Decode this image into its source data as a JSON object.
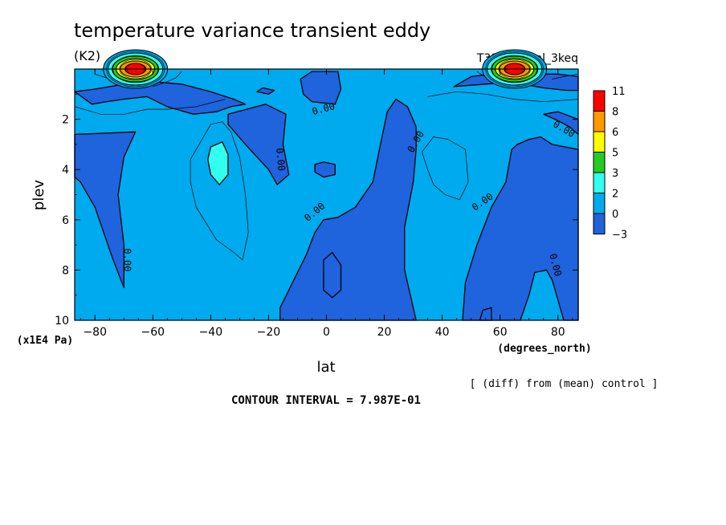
{
  "chart_data": {
    "type": "heatmap",
    "title": "temperature variance transient eddy",
    "subtitle": "(K2)",
    "run_label": "T39L24_eml_3keq",
    "xlabel": "lat",
    "x_units": "(degrees_north)",
    "ylabel": "plev",
    "y_units": "(x1E4 Pa)",
    "xlim": [
      -87,
      87
    ],
    "ylim": [
      0,
      10
    ],
    "y_reversed": true,
    "x_ticks": [
      -80,
      -60,
      -40,
      -20,
      0,
      20,
      40,
      60,
      80
    ],
    "x_tick_labels": [
      "−80",
      "−60",
      "−40",
      "−20",
      "0",
      "20",
      "40",
      "60",
      "80"
    ],
    "y_ticks": [
      2,
      4,
      6,
      8,
      10
    ],
    "y_tick_labels": [
      "2",
      "4",
      "6",
      "8",
      "10"
    ],
    "colorbar": {
      "placement": "right",
      "levels": [
        "11",
        "8",
        "6",
        "5",
        "3",
        "2",
        "0",
        "−3"
      ],
      "colors": [
        "#ff0000",
        "#ff9900",
        "#ffff00",
        "#22cc22",
        "#33ffee",
        "#00aaee",
        "#1f63dd"
      ]
    },
    "contour_labels": [
      {
        "text": "0.00",
        "lat": -1,
        "plev": 1.6,
        "rotate": -15
      },
      {
        "text": "0.00",
        "lat": -16,
        "plev": 3.6,
        "rotate": 85
      },
      {
        "text": "0.00",
        "lat": 31,
        "plev": 2.9,
        "rotate": -60
      },
      {
        "text": "0.00",
        "lat": -4,
        "plev": 5.7,
        "rotate": -40
      },
      {
        "text": "0.00",
        "lat": 54,
        "plev": 5.3,
        "rotate": -35
      },
      {
        "text": "0.00",
        "lat": 82,
        "plev": 2.4,
        "rotate": 30
      },
      {
        "text": "0.00",
        "lat": -69,
        "plev": 7.6,
        "rotate": 90
      },
      {
        "text": "0.00",
        "lat": 79,
        "plev": 7.8,
        "rotate": 75
      }
    ],
    "regions": {
      "negative_below_0": [
        [
          [
            -87,
            0.9
          ],
          [
            -81,
            1.4
          ],
          [
            -76,
            1.3
          ],
          [
            -70,
            1.2
          ],
          [
            -62,
            1.1
          ],
          [
            -55,
            1.5
          ],
          [
            -46,
            1.8
          ],
          [
            -38,
            1.7
          ],
          [
            -33,
            1.5
          ],
          [
            -28,
            1.4
          ],
          [
            -32,
            1.2
          ],
          [
            -40,
            0.9
          ],
          [
            -50,
            0.6
          ],
          [
            -60,
            0.5
          ],
          [
            -70,
            0.6
          ],
          [
            -80,
            0.8
          ]
        ],
        [
          [
            -87,
            2.6
          ],
          [
            -66,
            2.5
          ],
          [
            -70,
            3.5
          ],
          [
            -72,
            5.0
          ],
          [
            -70,
            7.0
          ],
          [
            -70,
            8.7
          ],
          [
            -74,
            7.5
          ],
          [
            -80,
            5.5
          ],
          [
            -85,
            4.5
          ],
          [
            -87,
            4.3
          ]
        ],
        [
          [
            -34,
            1.8
          ],
          [
            -21,
            1.4
          ],
          [
            -14,
            1.8
          ],
          [
            -15,
            3.0
          ],
          [
            -13,
            4.2
          ],
          [
            -17,
            4.6
          ],
          [
            -20,
            4.0
          ],
          [
            -28,
            3.0
          ],
          [
            -34,
            2.2
          ]
        ],
        [
          [
            -9,
            0.4
          ],
          [
            -5,
            0.1
          ],
          [
            4,
            0.1
          ],
          [
            5,
            0.8
          ],
          [
            3,
            1.4
          ],
          [
            -5,
            1.3
          ],
          [
            -8,
            1.0
          ]
        ],
        [
          [
            -4,
            3.8
          ],
          [
            -1,
            3.7
          ],
          [
            3,
            3.8
          ],
          [
            3,
            4.2
          ],
          [
            -1,
            4.3
          ],
          [
            -4,
            4.1
          ]
        ],
        [
          [
            -16,
            9.5
          ],
          [
            -7,
            7.4
          ],
          [
            -4,
            6.5
          ],
          [
            -1,
            6.0
          ],
          [
            4,
            5.9
          ],
          [
            10,
            5.5
          ],
          [
            16,
            4.5
          ],
          [
            19,
            2.8
          ],
          [
            21,
            1.7
          ],
          [
            24,
            1.2
          ],
          [
            28,
            1.5
          ],
          [
            31,
            2.3
          ],
          [
            31,
            3.2
          ],
          [
            30,
            4.5
          ],
          [
            27,
            6.3
          ],
          [
            27,
            8.0
          ],
          [
            29,
            9.0
          ],
          [
            31,
            10.0
          ],
          [
            -16,
            10.0
          ]
        ],
        [
          [
            -1,
            7.6
          ],
          [
            2,
            7.3
          ],
          [
            5,
            7.8
          ],
          [
            5,
            8.8
          ],
          [
            2,
            9.1
          ],
          [
            -1,
            8.8
          ]
        ],
        [
          [
            47,
            10.0
          ],
          [
            48,
            8.5
          ],
          [
            52,
            7.0
          ],
          [
            57,
            5.5
          ],
          [
            62,
            4.5
          ],
          [
            64,
            3.2
          ],
          [
            66,
            3.0
          ],
          [
            70,
            2.8
          ],
          [
            74,
            2.7
          ],
          [
            78,
            3.0
          ],
          [
            87,
            3.2
          ],
          [
            87,
            10.0
          ],
          [
            82,
            10.0
          ],
          [
            80,
            9.2
          ],
          [
            78,
            8.4
          ],
          [
            76,
            8.0
          ],
          [
            72,
            8.1
          ],
          [
            70,
            9.0
          ],
          [
            67,
            10.0
          ]
        ],
        [
          [
            53,
            10.0
          ],
          [
            54,
            9.6
          ],
          [
            57,
            9.5
          ],
          [
            57,
            10.0
          ]
        ],
        [
          [
            75,
            1.8
          ],
          [
            79,
            2.0
          ],
          [
            84,
            2.3
          ],
          [
            87,
            2.6
          ],
          [
            87,
            2.0
          ],
          [
            80,
            1.7
          ]
        ],
        [
          [
            44,
            0.7
          ],
          [
            55,
            0.6
          ],
          [
            61,
            0.55
          ],
          [
            68,
            0.6
          ],
          [
            75,
            0.75
          ],
          [
            83,
            0.85
          ],
          [
            87,
            0.85
          ],
          [
            87,
            0.3
          ],
          [
            80,
            0.2
          ],
          [
            70,
            0.2
          ],
          [
            60,
            0.15
          ],
          [
            50,
            0.3
          ]
        ],
        [
          [
            -24,
            0.9
          ],
          [
            -20,
            1.0
          ],
          [
            -18,
            0.85
          ],
          [
            -22,
            0.75
          ]
        ]
      ],
      "light_region_2_to_3": [
        [
          [
            -40,
            3.1
          ],
          [
            -36,
            2.9
          ],
          [
            -34,
            3.4
          ],
          [
            -34,
            4.2
          ],
          [
            -37,
            4.6
          ],
          [
            -40,
            4.2
          ],
          [
            -41,
            3.6
          ]
        ]
      ],
      "peak_south": {
        "lat": -66,
        "plev": 0.3,
        "value": 11
      },
      "peak_north": {
        "lat": 65,
        "plev": 0.3,
        "value": 11
      },
      "thin_contours": [
        [
          [
            -47,
            3.6
          ],
          [
            -43,
            2.8
          ],
          [
            -40,
            2.2
          ],
          [
            -36,
            2.1
          ],
          [
            -33,
            2.5
          ],
          [
            -30,
            3.5
          ],
          [
            -28,
            5.0
          ],
          [
            -27,
            6.5
          ],
          [
            -29,
            7.6
          ],
          [
            -32,
            7.3
          ],
          [
            -38,
            6.8
          ],
          [
            -45,
            5.5
          ],
          [
            -47,
            4.5
          ],
          [
            -47,
            3.6
          ]
        ],
        [
          [
            33,
            3.3
          ],
          [
            37,
            2.7
          ],
          [
            42,
            2.8
          ],
          [
            48,
            3.2
          ],
          [
            49,
            4.5
          ],
          [
            46,
            5.2
          ],
          [
            41,
            5.0
          ],
          [
            37,
            4.6
          ],
          [
            35,
            4.0
          ],
          [
            33,
            3.3
          ]
        ],
        [
          [
            -87,
            1.5
          ],
          [
            -78,
            1.8
          ],
          [
            -70,
            1.8
          ],
          [
            -62,
            1.6
          ],
          [
            -55,
            1.6
          ],
          [
            -45,
            1.5
          ],
          [
            -35,
            1.2
          ]
        ],
        [
          [
            35,
            1.1
          ],
          [
            45,
            0.9
          ],
          [
            55,
            1.0
          ],
          [
            65,
            1.2
          ],
          [
            75,
            1.3
          ],
          [
            87,
            1.2
          ]
        ],
        [
          [
            -60,
            0.7
          ],
          [
            -56,
            0.55
          ],
          [
            -52,
            0.35
          ],
          [
            -50,
            0.1
          ]
        ],
        [
          [
            -80,
            0.2
          ],
          [
            -76,
            0.35
          ],
          [
            -72,
            0.45
          ]
        ],
        [
          [
            52,
            0.1
          ],
          [
            56,
            0.4
          ],
          [
            60,
            0.6
          ]
        ],
        [
          [
            78,
            0.4
          ],
          [
            82,
            0.3
          ],
          [
            87,
            0.2
          ]
        ]
      ]
    }
  },
  "footer": {
    "diff_note": "[ (diff) from (mean) control ]",
    "contour_interval": "CONTOUR INTERVAL = 7.987E-01"
  }
}
